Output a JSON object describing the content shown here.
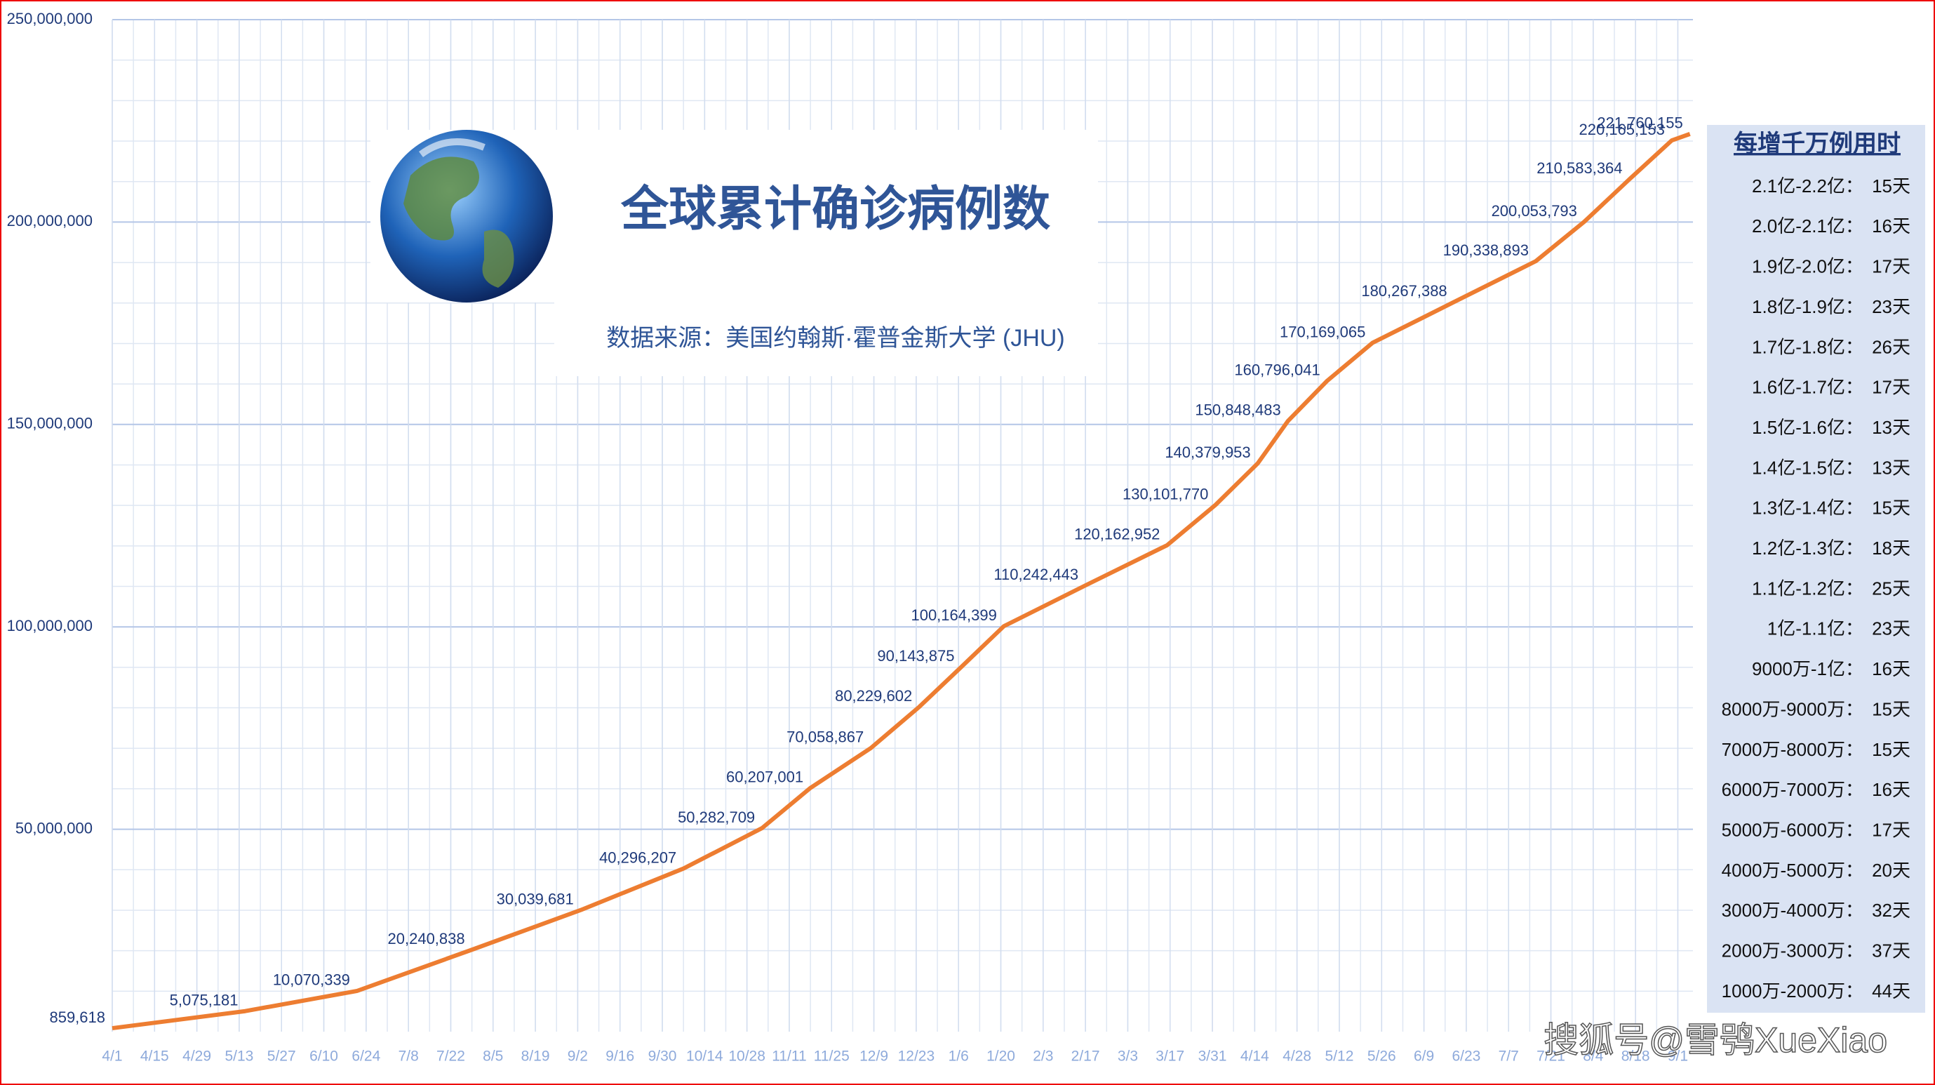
{
  "chart_data": {
    "type": "line",
    "title": "全球累计确诊病例数",
    "subtitle": "数据来源：美国约翰斯·霍普金斯大学 (JHU)",
    "xlim": [
      0,
      523
    ],
    "ylim": [
      0,
      250000000
    ],
    "grid": true,
    "yticks": [
      {
        "value": 50000000,
        "label": "50,000,000"
      },
      {
        "value": 100000000,
        "label": "100,000,000"
      },
      {
        "value": 150000000,
        "label": "150,000,000"
      },
      {
        "value": 200000000,
        "label": "200,000,000"
      },
      {
        "value": 250000000,
        "label": "250,000,000"
      }
    ],
    "xticks": [
      {
        "value": 0,
        "label": "4/1"
      },
      {
        "value": 14,
        "label": "4/15"
      },
      {
        "value": 28,
        "label": "4/29"
      },
      {
        "value": 42,
        "label": "5/13"
      },
      {
        "value": 56,
        "label": "5/27"
      },
      {
        "value": 70,
        "label": "6/10"
      },
      {
        "value": 84,
        "label": "6/24"
      },
      {
        "value": 98,
        "label": "7/8"
      },
      {
        "value": 112,
        "label": "7/22"
      },
      {
        "value": 126,
        "label": "8/5"
      },
      {
        "value": 140,
        "label": "8/19"
      },
      {
        "value": 154,
        "label": "9/2"
      },
      {
        "value": 168,
        "label": "9/16"
      },
      {
        "value": 182,
        "label": "9/30"
      },
      {
        "value": 196,
        "label": "10/14"
      },
      {
        "value": 210,
        "label": "10/28"
      },
      {
        "value": 224,
        "label": "11/11"
      },
      {
        "value": 238,
        "label": "11/25"
      },
      {
        "value": 252,
        "label": "12/9"
      },
      {
        "value": 266,
        "label": "12/23"
      },
      {
        "value": 280,
        "label": "1/6"
      },
      {
        "value": 294,
        "label": "1/20"
      },
      {
        "value": 308,
        "label": "2/3"
      },
      {
        "value": 322,
        "label": "2/17"
      },
      {
        "value": 336,
        "label": "3/3"
      },
      {
        "value": 350,
        "label": "3/17"
      },
      {
        "value": 364,
        "label": "3/31"
      },
      {
        "value": 378,
        "label": "4/14"
      },
      {
        "value": 392,
        "label": "4/28"
      },
      {
        "value": 406,
        "label": "5/12"
      },
      {
        "value": 420,
        "label": "5/26"
      },
      {
        "value": 434,
        "label": "6/9"
      },
      {
        "value": 448,
        "label": "6/23"
      },
      {
        "value": 462,
        "label": "7/7"
      },
      {
        "value": 476,
        "label": "7/21"
      },
      {
        "value": 490,
        "label": "8/4"
      },
      {
        "value": 504,
        "label": "8/18"
      },
      {
        "value": 518,
        "label": "9/1"
      }
    ],
    "series": [
      {
        "color": "#ed7d31",
        "x": [
          0,
          44,
          81,
          119,
          155,
          189,
          215,
          231,
          251,
          267,
          281,
          295,
          322,
          349,
          365,
          379,
          389,
          402,
          417,
          444,
          471,
          487,
          502,
          516,
          522
        ],
        "values": [
          859618,
          5075181,
          10070339,
          20240838,
          30039681,
          40296207,
          50282709,
          60207001,
          70058867,
          80229602,
          90143875,
          100164399,
          110242443,
          120162952,
          130101770,
          140379953,
          150848483,
          160796041,
          170169065,
          180267388,
          190338893,
          200053793,
          210583364,
          220165153,
          221760155
        ],
        "value_labels": [
          "859,618",
          "5,075,181",
          "10,070,339",
          "20,240,838",
          "30,039,681",
          "40,296,207",
          "50,282,709",
          "60,207,001",
          "70,058,867",
          "80,229,602",
          "90,143,875",
          "100,164,399",
          "110,242,443",
          "120,162,952",
          "130,101,770",
          "140,379,953",
          "150,848,483",
          "160,796,041",
          "170,169,065",
          "180,267,388",
          "190,338,893",
          "200,053,793",
          "210,583,364",
          "220,165,153",
          "221,760,155"
        ]
      }
    ]
  },
  "side_table": {
    "title": "每增千万例用时",
    "rows": [
      [
        "2.1亿-2.2亿：",
        "15天"
      ],
      [
        "2.0亿-2.1亿：",
        "16天"
      ],
      [
        "1.9亿-2.0亿：",
        "17天"
      ],
      [
        "1.8亿-1.9亿：",
        "23天"
      ],
      [
        "1.7亿-1.8亿：",
        "26天"
      ],
      [
        "1.6亿-1.7亿：",
        "17天"
      ],
      [
        "1.5亿-1.6亿：",
        "13天"
      ],
      [
        "1.4亿-1.5亿：",
        "13天"
      ],
      [
        "1.3亿-1.4亿：",
        "15天"
      ],
      [
        "1.2亿-1.3亿：",
        "18天"
      ],
      [
        "1.1亿-1.2亿：",
        "25天"
      ],
      [
        "1亿-1.1亿：",
        "23天"
      ],
      [
        "9000万-1亿：",
        "16天"
      ],
      [
        "8000万-9000万：",
        "15天"
      ],
      [
        "7000万-8000万：",
        "15天"
      ],
      [
        "6000万-7000万：",
        "16天"
      ],
      [
        "5000万-6000万：",
        "17天"
      ],
      [
        "4000万-5000万：",
        "20天"
      ],
      [
        "3000万-4000万：",
        "32天"
      ],
      [
        "2000万-3000万：",
        "37天"
      ],
      [
        "1000万-2000万：",
        "44天"
      ]
    ]
  },
  "watermark": "搜狐号@雪鸮XueXiao"
}
